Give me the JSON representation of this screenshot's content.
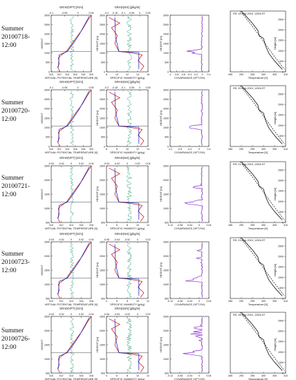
{
  "colors": {
    "red": "#d42020",
    "blue": "#2030c8",
    "green": "#2a9c72",
    "violet": "#8a2ad0",
    "black": "#111111"
  },
  "rows": [
    {
      "label_line1": "Summer",
      "label_line2": "20100718-",
      "label_line3": "12:00",
      "rs_title": "RS: 18 July 2010, 1200LST"
    },
    {
      "label_line1": "Summer",
      "label_line2": "20100720-",
      "label_line3": "12:00",
      "rs_title": "RS: 20 July 2010, 1200LST"
    },
    {
      "label_line1": "Summer",
      "label_line2": "20100721-",
      "label_line3": "12:00",
      "rs_title": "RS: 21 July 2010, 1200LST"
    },
    {
      "label_line1": "Summer",
      "label_line2": "20100723-",
      "label_line3": "12:00",
      "rs_title": "RS: 23 July 2010, 1200LST"
    },
    {
      "label_line1": "Summer",
      "label_line2": "20100726-",
      "label_line3": "12:00",
      "rs_title": "RS: 26 July 2010, 1200LST"
    }
  ],
  "chart_data": [
    {
      "type": "line",
      "title": "GRAD(VPT) [K/m]",
      "xlabel": "VIRTUAL POTENTIAL TEMPERATURE [K]",
      "ylabel": "HEIGHT",
      "series": [
        {
          "name": "VPT"
        },
        {
          "name": "GRAD(VPT)"
        }
      ],
      "note": "column 1, repeated for 5 rows"
    },
    {
      "type": "line",
      "title": "GRAD(SH) [g/kg/m]",
      "xlabel": "SPECIFIC HUMIDITY [g/kg]",
      "ylabel": "HEIGHT [m]",
      "series": [
        {
          "name": "SH"
        },
        {
          "name": "GRAD(SH)"
        }
      ]
    },
    {
      "type": "line",
      "xlabel": "COVARIANCE (VPT,SH)",
      "ylabel": "HEIGHT [m]",
      "series": [
        {
          "name": "COV(VPT,SH)"
        }
      ]
    },
    {
      "type": "line",
      "xlabel": "Temperature [K]",
      "ylabel": "Height [m]",
      "xticks": [
        "285",
        "290",
        "295",
        "300",
        "305",
        "310"
      ],
      "yticks": [
        "0",
        "500",
        "1000",
        "1500",
        "2000",
        "2500"
      ],
      "series": [
        {
          "name": "Temperature"
        },
        {
          "name": "dashed reference"
        }
      ]
    }
  ],
  "panels": [
    {
      "y": [
        "3000",
        "2500",
        "2000",
        "1500",
        "1000",
        "500",
        "0"
      ],
      "c1": {
        "top": [
          "-0.1",
          "-0.05",
          "0",
          "0.05"
        ],
        "bot": [
          "310",
          "312",
          "314",
          "316",
          "318",
          "320"
        ],
        "xlabel": "VIRTUAL POTENTIAL TEMPERATURE [K]",
        "title": "GRAD(VPT) [K/m]",
        "ylabel": "HEIGHT"
      },
      "c2": {
        "top": [
          "-0.2",
          "-0.15",
          "-0.1",
          "-0.05",
          "0",
          "0.05"
        ],
        "bot": [
          "8",
          "10",
          "12",
          "14",
          "16"
        ],
        "xlabel": "SPECIFIC HUMIDITY [g/kg]",
        "title": "GRAD(SH) [g/kg/m]",
        "ylabel": "HEIGHT [m]"
      },
      "c3": {
        "bot": [
          "-1",
          "-0.8",
          "-0.6",
          "-0.4",
          "-0.2",
          "0",
          "0.2"
        ],
        "xlabel": "COVARIANCE (VPT,SH)",
        "ylabel": "HEIGHT [m]"
      }
    },
    {
      "y": [
        "3000",
        "2500",
        "2000",
        "1500",
        "1000",
        "500",
        "0"
      ],
      "c1": {
        "top": [
          "-0.1",
          "-0.05",
          "0",
          "0.05"
        ],
        "bot": [
          "310",
          "312",
          "314",
          "316",
          "318",
          "320"
        ],
        "xlabel": "VIRTUAL POTENTIAL TEMPERATURE [K]",
        "title": "GRAD(VPT) [K/m]",
        "ylabel": "HEIGHT"
      },
      "c2": {
        "top": [
          "-0.2",
          "-0.15",
          "-0.1",
          "-0.05",
          "0",
          "0.05"
        ],
        "bot": [
          "6",
          "8",
          "10",
          "12",
          "14"
        ],
        "xlabel": "SPECIFIC HUMIDITY [g/kg]",
        "title": "GRAD(SH) [g/kg/m]",
        "ylabel": "HEIGHT [m]"
      },
      "c3": {
        "bot": [
          "-1.2",
          "-0.8",
          "-0.4",
          "0",
          "0.4"
        ],
        "xlabel": "COVARIANCE (VPT,SH)",
        "ylabel": "HEIGHT [m]"
      }
    },
    {
      "y": [
        "2500",
        "2000",
        "1500",
        "1000",
        "500"
      ],
      "c1": {
        "top": [
          "-0.04",
          "-0.02",
          "0",
          "0.02",
          "0.04"
        ],
        "bot": [
          "310",
          "312",
          "314",
          "316",
          "318"
        ],
        "xlabel": "VIRTUAL POTENTIAL TEMPERATURE [K]",
        "title": "GRAD(VPT) [K/m]",
        "ylabel": "HEIGHT"
      },
      "c2": {
        "top": [
          "-0.04",
          "-0.02",
          "0",
          "0.02",
          "0.04"
        ],
        "bot": [
          "4",
          "6",
          "8",
          "10",
          "12"
        ],
        "xlabel": "SPECIFIC HUMIDITY [g/kg]",
        "title": "GRAD(SH) [g/kg/m]",
        "ylabel": "HEIGHT [m]"
      },
      "c3": {
        "bot": [
          "-0.12",
          "-0.08",
          "-0.04",
          "0",
          "0.04"
        ],
        "xlabel": "COVARIANCE (VPT,SH)",
        "ylabel": "HEIGHT [m]"
      }
    },
    {
      "y": [
        "2500",
        "2000",
        "1500",
        "1000",
        "500"
      ],
      "c1": {
        "top": [
          "-0.04",
          "-0.02",
          "0",
          "0.02",
          "0.04"
        ],
        "bot": [
          "310",
          "312",
          "314",
          "316",
          "318"
        ],
        "xlabel": "VIRTUAL POTENTIAL TEMPERATURE [K]",
        "title": "GRAD(VPT) [K/m]",
        "ylabel": "HEIGHT"
      },
      "c2": {
        "top": [
          "-0.06",
          "-0.04",
          "-0.02",
          "0",
          "0.02"
        ],
        "bot": [
          "4",
          "6",
          "8",
          "10",
          "12"
        ],
        "xlabel": "SPECIFIC HUMIDITY [g/kg]",
        "title": "GRAD(SH) [g/kg/m]",
        "ylabel": "HEIGHT [m]"
      },
      "c3": {
        "bot": [
          "-0.12",
          "-0.08",
          "-0.04",
          "0",
          "0.04"
        ],
        "xlabel": "COVARIANCE (VPT,SH)",
        "ylabel": "HEIGHT [m]"
      }
    },
    {
      "y": [
        "2500",
        "2000",
        "1500",
        "1000",
        "500"
      ],
      "c1": {
        "top": [
          "-0.04",
          "-0.02",
          "0",
          "0.02",
          "0.04"
        ],
        "bot": [
          "310",
          "312",
          "314",
          "316",
          "318"
        ],
        "xlabel": "VIRTUAL POTENTIAL TEMPERATURE [K]",
        "title": "GRAD(VPT) [K/m]",
        "ylabel": "HEIGHT"
      },
      "c2": {
        "top": [
          "-0.06",
          "-0.04",
          "-0.02",
          "0",
          "0.02"
        ],
        "bot": [
          "4",
          "6",
          "8",
          "10",
          "12"
        ],
        "xlabel": "SPECIFIC HUMIDITY [g/kg]",
        "title": "GRAD(SH) [g/kg/m]",
        "ylabel": "HEIGHT [m]"
      },
      "c3": {
        "bot": [
          "-0.12",
          "-0.08",
          "-0.04",
          "0",
          "0.04"
        ],
        "xlabel": "COVARIANCE (VPT,SH)",
        "ylabel": "HEIGHT [m]"
      }
    }
  ]
}
